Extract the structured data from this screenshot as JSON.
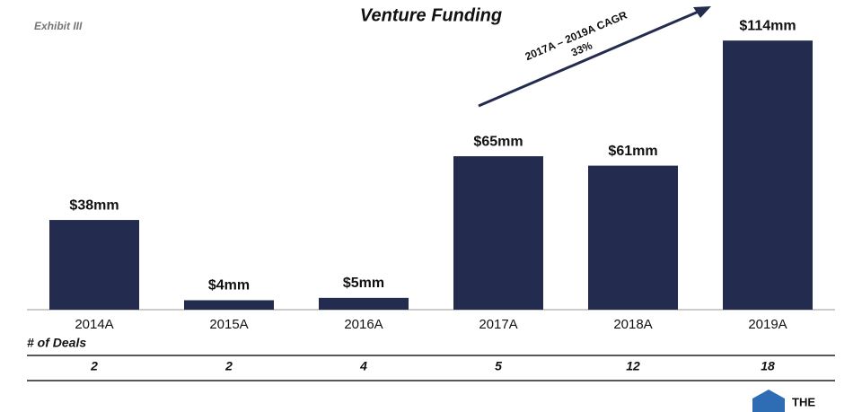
{
  "chart_data": {
    "type": "bar",
    "title": "Venture Funding",
    "exhibit": "Exhibit III",
    "categories": [
      "2014A",
      "2015A",
      "2016A",
      "2017A",
      "2018A",
      "2019A"
    ],
    "values": [
      38,
      4,
      5,
      65,
      61,
      114
    ],
    "value_labels": [
      "$38mm",
      "$4mm",
      "$5mm",
      "$65mm",
      "$61mm",
      "$114mm"
    ],
    "color": "#232c4f",
    "annotation": [
      "2017A – 2019A CAGR",
      "33%"
    ],
    "deals": {
      "label": "# of Deals",
      "values": [
        "2",
        "2",
        "4",
        "5",
        "12",
        "18"
      ]
    }
  },
  "logo": "THE"
}
